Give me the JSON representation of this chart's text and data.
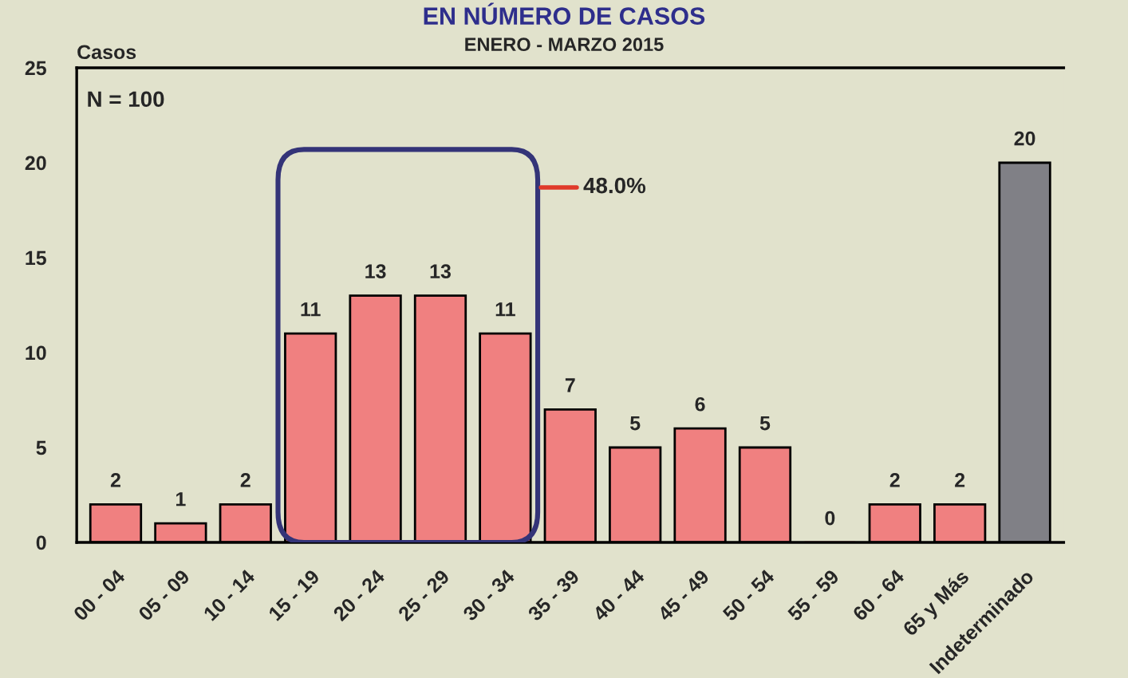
{
  "chart_data": {
    "type": "bar",
    "title": "EN NÚMERO DE CASOS",
    "subtitle": "ENERO - MARZO 2015",
    "ylabel": "Casos",
    "categories": [
      "00 - 04",
      "05 - 09",
      "10 - 14",
      "15 - 19",
      "20 - 24",
      "25 - 29",
      "30 - 34",
      "35 - 39",
      "40 - 44",
      "45 - 49",
      "50 - 54",
      "55 - 59",
      "60 - 64",
      "65 y Más",
      "Indeterminado"
    ],
    "values": [
      2,
      1,
      2,
      11,
      13,
      13,
      11,
      7,
      5,
      6,
      5,
      0,
      2,
      2,
      20
    ],
    "colors": [
      "#f08080",
      "#f08080",
      "#f08080",
      "#f08080",
      "#f08080",
      "#f08080",
      "#f08080",
      "#f08080",
      "#f08080",
      "#f08080",
      "#f08080",
      "#f08080",
      "#f08080",
      "#f08080",
      "#808086"
    ],
    "ylim": [
      0,
      25
    ],
    "yticks": [
      0,
      5,
      10,
      15,
      20,
      25
    ],
    "data_labels": true,
    "grid": false,
    "annotations": [
      "N = 100",
      "48.0%"
    ]
  }
}
